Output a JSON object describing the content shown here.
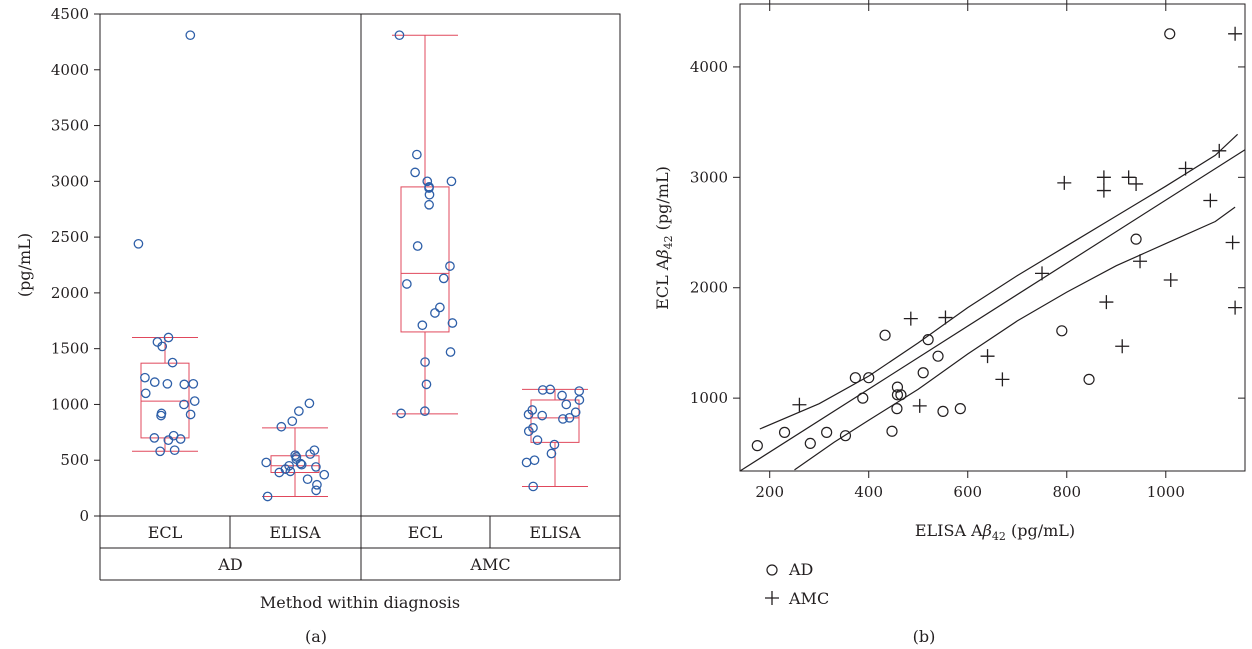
{
  "chart_data": [
    {
      "panel": "(a)",
      "type": "box",
      "ylabel": "(pg/mL)",
      "xlabel": "Method within diagnosis",
      "ylim": [
        0,
        4500
      ],
      "yticks": [
        0,
        500,
        1000,
        1500,
        2000,
        2500,
        3000,
        3500,
        4000,
        4500
      ],
      "groups": [
        "AD",
        "AMC"
      ],
      "categories": [
        "ECL",
        "ELISA",
        "ECL",
        "ELISA"
      ],
      "boxes": [
        {
          "group": "AD",
          "method": "ECL",
          "whisker_low": 580,
          "q1": 700,
          "median": 1030,
          "q3": 1370,
          "whisker_high": 1600
        },
        {
          "group": "AD",
          "method": "ELISA",
          "whisker_low": 175,
          "q1": 390,
          "median": 450,
          "q3": 540,
          "whisker_high": 790
        },
        {
          "group": "AMC",
          "method": "ECL",
          "whisker_low": 915,
          "q1": 1650,
          "median": 2175,
          "q3": 2950,
          "whisker_high": 4310
        },
        {
          "group": "AMC",
          "method": "ELISA",
          "whisker_low": 265,
          "q1": 660,
          "median": 880,
          "q3": 1040,
          "whisker_high": 1135
        }
      ],
      "points": [
        [
          4310,
          2440,
          1600,
          1560,
          1520,
          1375,
          1240,
          1200,
          1185,
          1185,
          1180,
          1100,
          1030,
          1000,
          920,
          910,
          900,
          720,
          700,
          690,
          680,
          590,
          580
        ],
        [
          1010,
          940,
          850,
          800,
          590,
          555,
          545,
          530,
          510,
          480,
          470,
          460,
          450,
          440,
          420,
          400,
          390,
          370,
          330,
          280,
          230,
          175
        ],
        [
          4310,
          3240,
          3080,
          3000,
          3000,
          2950,
          2940,
          2880,
          2790,
          2420,
          2240,
          2130,
          2080,
          1870,
          1820,
          1730,
          1710,
          1470,
          1380,
          1180,
          940,
          920
        ],
        [
          1135,
          1130,
          1120,
          1080,
          1040,
          1000,
          950,
          930,
          910,
          900,
          880,
          870,
          790,
          760,
          680,
          640,
          560,
          500,
          480,
          265
        ]
      ],
      "marker_color": "#2e5fa8",
      "box_color": "#e0485c"
    },
    {
      "panel": "(b)",
      "type": "scatter",
      "xlabel": "ELISA Aβ42 (pg/mL)",
      "ylabel": "ECL Aβ42 (pg/mL)",
      "xlim": [
        140,
        1160
      ],
      "ylim": [
        340,
        4570
      ],
      "xticks": [
        200,
        400,
        600,
        800,
        1000
      ],
      "yticks": [
        1000,
        2000,
        3000,
        4000
      ],
      "legend": [
        {
          "symbol": "circle",
          "label": "AD"
        },
        {
          "symbol": "plus",
          "label": "AMC"
        }
      ],
      "series": [
        {
          "name": "AD",
          "symbol": "circle",
          "points": [
            [
              1008,
              4300
            ],
            [
              940,
              2440
            ],
            [
              790,
              1610
            ],
            [
              433,
              1570
            ],
            [
              520,
              1530
            ],
            [
              540,
              1380
            ],
            [
              510,
              1230
            ],
            [
              373,
              1185
            ],
            [
              400,
              1185
            ],
            [
              845,
              1170
            ],
            [
              458,
              1100
            ],
            [
              458,
              1030
            ],
            [
              465,
              1030
            ],
            [
              388,
              1000
            ],
            [
              457,
              905
            ],
            [
              550,
              880
            ],
            [
              585,
              905
            ],
            [
              447,
              700
            ],
            [
              230,
              690
            ],
            [
              315,
              690
            ],
            [
              353,
              660
            ],
            [
              175,
              570
            ],
            [
              282,
              590
            ]
          ]
        },
        {
          "name": "AMC",
          "symbol": "plus",
          "points": [
            [
              1140,
              4300
            ],
            [
              1108,
              3240
            ],
            [
              1040,
              3080
            ],
            [
              875,
              3000
            ],
            [
              925,
              3000
            ],
            [
              795,
              2950
            ],
            [
              940,
              2940
            ],
            [
              875,
              2880
            ],
            [
              1090,
              2790
            ],
            [
              1135,
              2410
            ],
            [
              948,
              2240
            ],
            [
              750,
              2130
            ],
            [
              1010,
              2070
            ],
            [
              880,
              1870
            ],
            [
              1140,
              1820
            ],
            [
              485,
              1720
            ],
            [
              555,
              1730
            ],
            [
              912,
              1470
            ],
            [
              640,
              1380
            ],
            [
              670,
              1170
            ],
            [
              503,
              930
            ],
            [
              260,
              940
            ]
          ]
        }
      ],
      "fit_line": [
        [
          140,
          340
        ],
        [
          1160,
          3250
        ]
      ],
      "ci_upper": [
        [
          180,
          720
        ],
        [
          300,
          950
        ],
        [
          400,
          1200
        ],
        [
          500,
          1500
        ],
        [
          600,
          1820
        ],
        [
          700,
          2110
        ],
        [
          800,
          2380
        ],
        [
          900,
          2650
        ],
        [
          1000,
          2920
        ],
        [
          1100,
          3200
        ],
        [
          1145,
          3390
        ]
      ],
      "ci_lower": [
        [
          250,
          350
        ],
        [
          330,
          600
        ],
        [
          400,
          800
        ],
        [
          500,
          1080
        ],
        [
          600,
          1400
        ],
        [
          700,
          1700
        ],
        [
          800,
          1960
        ],
        [
          900,
          2200
        ],
        [
          1000,
          2400
        ],
        [
          1100,
          2600
        ],
        [
          1140,
          2730
        ]
      ]
    }
  ],
  "captions": {
    "a": "(a)",
    "b": "(b)"
  }
}
